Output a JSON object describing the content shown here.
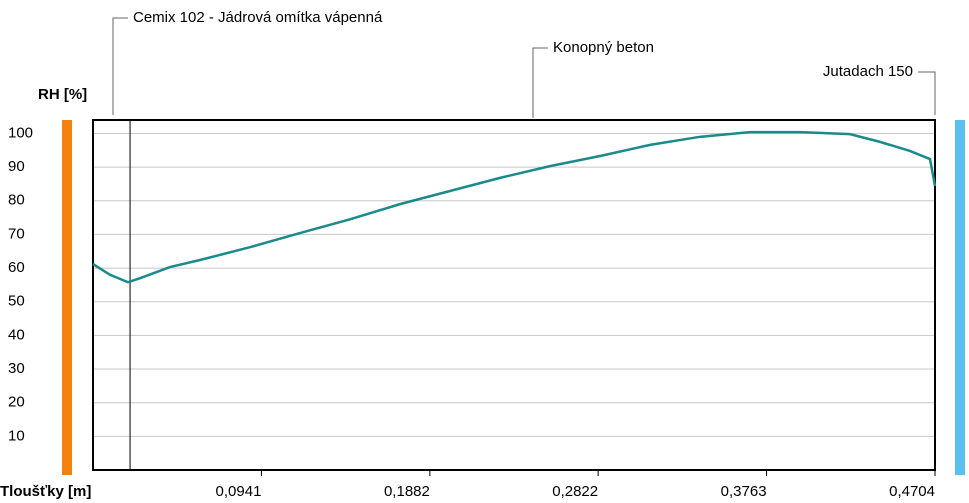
{
  "chart_data": {
    "type": "line",
    "ylabel": "RH [%]",
    "xlabel": "Tloušťky [m]",
    "annotations": [
      "Cemix 102 - Jádrová omítka vápenná",
      "Konopný beton",
      "Jutadach 150"
    ],
    "boundaries": [
      0.0207
    ],
    "x": [
      0,
      0.0095,
      0.0196,
      0.0263,
      0.043,
      0.0598,
      0.0877,
      0.1156,
      0.1436,
      0.1715,
      0.1994,
      0.2274,
      0.2553,
      0.2833,
      0.3112,
      0.3391,
      0.367,
      0.395,
      0.4229,
      0.4397,
      0.4564,
      0.4676,
      0.4704
    ],
    "series": [
      {
        "color": "#1b8a8a",
        "values": [
          61.2,
          58,
          55.8,
          57,
          60.3,
          62.4,
          66.2,
          70.4,
          74.5,
          79,
          82.9,
          86.8,
          90.3,
          93.3,
          96.6,
          99,
          100.4,
          100.4,
          99.8,
          97.5,
          94.8,
          92.4,
          84.4
        ]
      }
    ],
    "xlim": [
      0,
      0.4704
    ],
    "ylim": [
      0,
      104
    ],
    "xticks": [
      {
        "value": 0.0941,
        "label": "0,0941"
      },
      {
        "value": 0.1882,
        "label": "0,1882"
      },
      {
        "value": 0.2822,
        "label": "0,2822"
      },
      {
        "value": 0.3763,
        "label": "0,3763"
      },
      {
        "value": 0.4704,
        "label": "0,4704"
      }
    ],
    "yticks": [
      10,
      20,
      30,
      40,
      50,
      60,
      70,
      80,
      90,
      100
    ],
    "grid": true
  }
}
